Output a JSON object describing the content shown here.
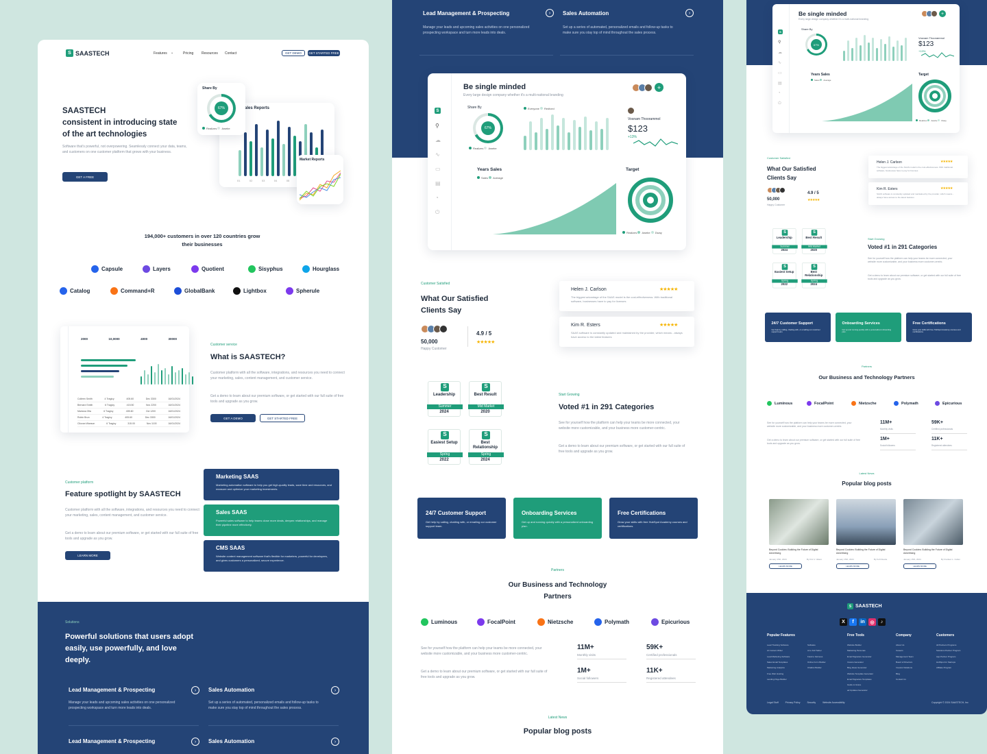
{
  "brand": {
    "name": "SAASTECH",
    "accent": "#1f9d7a",
    "navy": "#244476",
    "background": "#cfe6e0"
  },
  "nav": {
    "items": [
      "Features",
      "Pricing",
      "Resources",
      "Contact"
    ],
    "get_demo": "GET DEMO",
    "get_started": "GET STARTED FREE"
  },
  "hero": {
    "title_brand": "SAASTECH",
    "title_rest": "consistent in introducing state of the art technologies",
    "description": "Software that's powerful, not overpowering. Seamlessly connect your data, teams, and customers on one customer platform that grows with your business.",
    "cta": "GET A FREE",
    "share_by": "Share By",
    "share_pct": "67%",
    "sales_reports": "Sales Reports",
    "market_reports": "Market Reports",
    "legend_a": "Realizes",
    "legend_b": "Awebe",
    "bar_values": [
      0.45,
      0.75,
      0.6,
      0.9,
      0.5,
      0.8,
      0.65,
      0.95,
      0.55,
      0.85,
      0.7,
      0.6,
      0.9,
      0.75,
      0.5,
      0.8
    ],
    "month_ticks": [
      "01",
      "02",
      "03",
      "04",
      "05",
      "06",
      "07",
      "08"
    ]
  },
  "customers": {
    "headline": "194,000+ customers in over 120 countries grow their businesses",
    "logos": [
      "Capsule",
      "Layers",
      "Quotient",
      "Sisyphus",
      "Hourglass",
      "Catalog",
      "Command+R",
      "GlobalBank",
      "Lightbox",
      "Spherule"
    ]
  },
  "what_is": {
    "eyebrow": "Customer service",
    "title": "What is SAASTECH?",
    "p1": "Customer platform with all the software, integrations, and resources you need to connect your marketing, sales, content management, and customer service.",
    "p2": "Get a demo to learn about our premium software, or get started with our full suite of free tools and upgrade as you grow.",
    "btn_demo": "GET A DEMO",
    "btn_start": "GET STARTED FREE",
    "stats": [
      "2000",
      "10,0000",
      "4000",
      "30000"
    ],
    "table_rows": [
      [
        "Colleen Smith",
        "4 Tragicy",
        "405.60",
        "Dec 3300",
        "16/01/2024"
      ],
      [
        "Bernard Smith",
        "6 Tragicy",
        "415.50",
        "Nov 2200",
        "16/01/2024"
      ],
      [
        "Mariana Olla",
        "6 Tragicy",
        "405.60",
        "Oct 1200",
        "16/01/2024"
      ],
      [
        "Robin Brun",
        "4 Tragicy",
        "405.60",
        "Dec 3300",
        "16/01/2024"
      ],
      [
        "Cilovan Wanson",
        "6 Tragicy",
        "315.00",
        "Nov 1100",
        "16/01/2024"
      ]
    ]
  },
  "spotlight": {
    "eyebrow": "Customer platform",
    "title": "Feature spotlight by SAASTECH",
    "p1": "Customer platform with all the software, integrations, and resources you need to connect your marketing, sales, content management, and customer service.",
    "p2": "Get a demo to learn about our premium software, or get started with our full suite of free tools and upgrade as you grow.",
    "btn": "LEARN MORE",
    "cards": [
      {
        "title": "Marketing SAAS",
        "text": "Marketing automation software to help you get high-quality leads, save time and resources, and measure and optimize your marketing investments."
      },
      {
        "title": "Sales SAAS",
        "text": "Powerful sales software to help teams close more deals, deepen relationships, and manage their pipeline more effectively."
      },
      {
        "title": "CMS SAAS",
        "text": "Website content management software that's flexible for marketers, powerful for developers, and gives customers a personalized, secure experience."
      }
    ]
  },
  "solutions": {
    "eyebrow": "Solutions",
    "title": "Powerful solutions that users adopt easily, use powerfully, and love deeply.",
    "items": [
      {
        "title": "Lead Management & Prospecting",
        "text": "Manage your leads and upcoming sales activities on one personalized prospecting workspace and turn more leads into deals."
      },
      {
        "title": "Sales Automation",
        "text": "Set up a series of automated, personalized emails and follow-up tasks to make sure you stay top of mind throughout the sales process."
      }
    ]
  },
  "dashboard": {
    "title": "Be single minded",
    "subtitle": "Every large design company whether it's a multi-national branding",
    "share_by": "Share By",
    "pct": "67%",
    "legend_a": "Realizes",
    "legend_b": "Awebe",
    "bar_legend_a": "Everyone",
    "bar_legend_b": "Redived",
    "person": "Vosnam Thoorammol",
    "amount": "$123",
    "change": "+13%",
    "years_sales": "Years Sales",
    "sales": "Sales",
    "average": "Average",
    "target": "Target",
    "t_a": "Realizes",
    "t_b": "Awebe",
    "t_c": "Dway",
    "sparkline": [
      0.4,
      0.8,
      0.5,
      0.9,
      0.6,
      1.0,
      0.7,
      0.9,
      0.5,
      0.85,
      0.65,
      0.95,
      0.55,
      0.8,
      0.6,
      0.9
    ]
  },
  "testimonials": {
    "eyebrow": "Customer Satisfied",
    "title": "What Our Satisfied Clients Say",
    "count": "50,000",
    "count_label": "Happy Customer",
    "rating": "4.9 / 5",
    "reviews": [
      {
        "name": "Helen J. Carlson",
        "text": "The biggest advantage of the SAAS model is the cost-effectiveness. With traditional software, businesses have to pay for licenses"
      },
      {
        "name": "Kim R. Esters",
        "text": "SAAS software is constantly updated and maintained by the provider, which means - always have access to the latest features"
      }
    ]
  },
  "awards": {
    "eyebrow": "Start Growing",
    "title": "Voted #1 in 291 Categories",
    "p1": "See for yourself how the platform can help your teams be more connected, your website more customizable, and your business more customer-centric.",
    "p2": "Get a demo to learn about our premium software, or get started with our full suite of free tools and upgrade as you grow.",
    "badges": [
      {
        "title": "Leadership",
        "ribbon": "Summer",
        "year": "2024"
      },
      {
        "title": "Best Result",
        "ribbon": "Mid Market",
        "year": "2020"
      },
      {
        "title": "Easiest Setup",
        "ribbon": "Spring",
        "year": "2022"
      },
      {
        "title": "Best Relationship",
        "ribbon": "Spring",
        "year": "2024"
      }
    ]
  },
  "services": [
    {
      "title": "24/7 Customer Support",
      "text": "Get help by calling, chatting with, or emailing our customer support team."
    },
    {
      "title": "Onboarding Services",
      "text": "Get up and running quickly with a personalized onboarding plan."
    },
    {
      "title": "Free Certifications",
      "text": "Grow your skills with free HubSpot Academy courses and certifications."
    }
  ],
  "partners": {
    "eyebrow": "Partners",
    "title": "Our Business and Technology Partners",
    "logos": [
      "Luminous",
      "FocalPoint",
      "Nietzsche",
      "Polymath",
      "Epicurious"
    ],
    "p1": "See for yourself how the platform can help your teams be more connected, your website more customizable, and your business more customer-centric.",
    "p2": "Get a demo to learn about our premium software, or get started with our full suite of free tools and upgrade as you grow.",
    "stats": [
      {
        "value": "11M+",
        "label": "Monthly visits"
      },
      {
        "value": "59K+",
        "label": "Certified professionals"
      },
      {
        "value": "1M+",
        "label": "Social followers"
      },
      {
        "value": "11K+",
        "label": "Registered attendees"
      }
    ]
  },
  "blog": {
    "eyebrow": "Latest News",
    "title": "Popular blog posts",
    "posts": [
      {
        "title": "Beyond Cookies: Building the Future of Digital Advertising",
        "date": "January 15th, 2024",
        "author": "By Kris V. Valero",
        "btn": "LEARN MORE"
      },
      {
        "title": "Beyond Cookies: Building the Future of Digital Advertising",
        "date": "January 15th, 2024",
        "author": "By Kofi Duarte",
        "btn": "LEARN MORE"
      },
      {
        "title": "Beyond Cookies: Building the Future of Digital Advertising",
        "date": "January 15th, 2024",
        "author": "By Franken L. Cullen",
        "btn": "LEARN MORE"
      }
    ]
  },
  "footer": {
    "cols": [
      {
        "title": "Popular Features",
        "items": [
          "Lead Tracking Software",
          "AI Content Writer",
          "Lead Marketing Software",
          "Sales Email Templates",
          "Marketing Analytics",
          "Free Web Hosting",
          "Landing Page Builder"
        ]
      },
      {
        "title": "",
        "items": [
          "Software",
          "Ai to Full Tether",
          "Fetal to Fairness",
          "Online Form Builder",
          "Chatbot Builder"
        ]
      },
      {
        "title": "Free Tools",
        "items": [
          "Website Builder",
          "Marketing Personas",
          "Email Signature Generator",
          "Invoice Generator",
          "Blog Ideas Generator",
          "Website Template Generator",
          "Email Signature Templates",
          "Guide to Grace",
          "ad Updates Generator"
        ]
      },
      {
        "title": "Company",
        "items": [
          "About Us",
          "Careers",
          "Management Team",
          "Board of Directors",
          "Investor Relations",
          "Blog",
          "Contact Us"
        ]
      },
      {
        "title": "Customers",
        "items": [
          "All Partners Programs",
          "Solutions Partner Program",
          "App Partner Program",
          "HubSpot for Startups",
          "Affiliate Program"
        ]
      }
    ],
    "legal": [
      "Legal Stuff",
      "Privacy Policy",
      "Security",
      "Website Accessibility"
    ],
    "copyright": "Copyright © 2024 SAASTECH, Inc"
  }
}
